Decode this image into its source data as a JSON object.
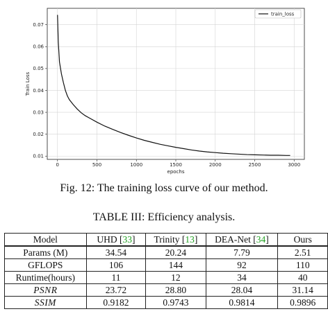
{
  "chart_data": {
    "type": "line",
    "xlabel": "epochs",
    "ylabel": "Train Loss",
    "xlim": [
      -130,
      3130
    ],
    "ylim": [
      0.0085,
      0.0775
    ],
    "xticks": [
      0,
      500,
      1000,
      1500,
      2000,
      2500,
      3000
    ],
    "yticks": [
      0.01,
      0.02,
      0.03,
      0.04,
      0.05,
      0.06,
      0.07
    ],
    "ytick_labels": [
      "0.01",
      "0.02",
      "0.03",
      "0.04",
      "0.05",
      "0.06",
      "0.07"
    ],
    "grid": true,
    "legend_position": "top-right",
    "series": [
      {
        "name": "train_loss",
        "color": "#111111",
        "x": [
          0,
          10,
          25,
          50,
          75,
          100,
          125,
          150,
          200,
          250,
          300,
          350,
          400,
          500,
          600,
          700,
          800,
          900,
          1000,
          1100,
          1200,
          1300,
          1400,
          1500,
          1600,
          1700,
          1800,
          1900,
          2000,
          2100,
          2200,
          2300,
          2400,
          2500,
          2600,
          2700,
          2800,
          2900,
          2950
        ],
        "y": [
          0.0745,
          0.062,
          0.053,
          0.0475,
          0.0435,
          0.04,
          0.0375,
          0.0358,
          0.0335,
          0.0315,
          0.0298,
          0.0285,
          0.0275,
          0.0255,
          0.0237,
          0.0222,
          0.0208,
          0.0195,
          0.0183,
          0.0172,
          0.0163,
          0.0154,
          0.0147,
          0.014,
          0.0134,
          0.0128,
          0.0123,
          0.0119,
          0.0116,
          0.0113,
          0.0111,
          0.0109,
          0.0107,
          0.0106,
          0.0105,
          0.0104,
          0.0104,
          0.0103,
          0.0103
        ]
      }
    ]
  },
  "figure_caption": "Fig. 12: The training loss curve of our method.",
  "table_caption": "TABLE III: Efficiency analysis.",
  "table": {
    "header": {
      "model": "Model",
      "cols": [
        {
          "name": "UHD [",
          "ref": "33",
          "close": "]"
        },
        {
          "name": "Trinity [",
          "ref": "13",
          "close": "]"
        },
        {
          "name": "DEA-Net [",
          "ref": "34",
          "close": "]"
        },
        {
          "name": "Ours",
          "ref": "",
          "close": ""
        }
      ]
    },
    "rows": [
      {
        "label": "Params (M)",
        "values": [
          "34.54",
          "20.24",
          "7.79",
          "2.51"
        ],
        "bold": [
          false,
          false,
          false,
          true
        ]
      },
      {
        "label": "GFLOPS",
        "values": [
          "106",
          "144",
          "92",
          "110"
        ],
        "bold": [
          false,
          false,
          true,
          false
        ]
      },
      {
        "label": "Runtime(hours)",
        "values": [
          "11",
          "12",
          "34",
          "40"
        ],
        "bold": [
          false,
          true,
          false,
          false
        ]
      },
      {
        "label": "PSNR",
        "values": [
          "23.72",
          "28.80",
          "28.04",
          "31.14"
        ],
        "bold": [
          false,
          false,
          false,
          true
        ]
      },
      {
        "label": "SSIM",
        "values": [
          "0.9182",
          "0.9743",
          "0.9814",
          "0.9896"
        ],
        "bold": [
          false,
          false,
          false,
          true
        ]
      }
    ]
  }
}
